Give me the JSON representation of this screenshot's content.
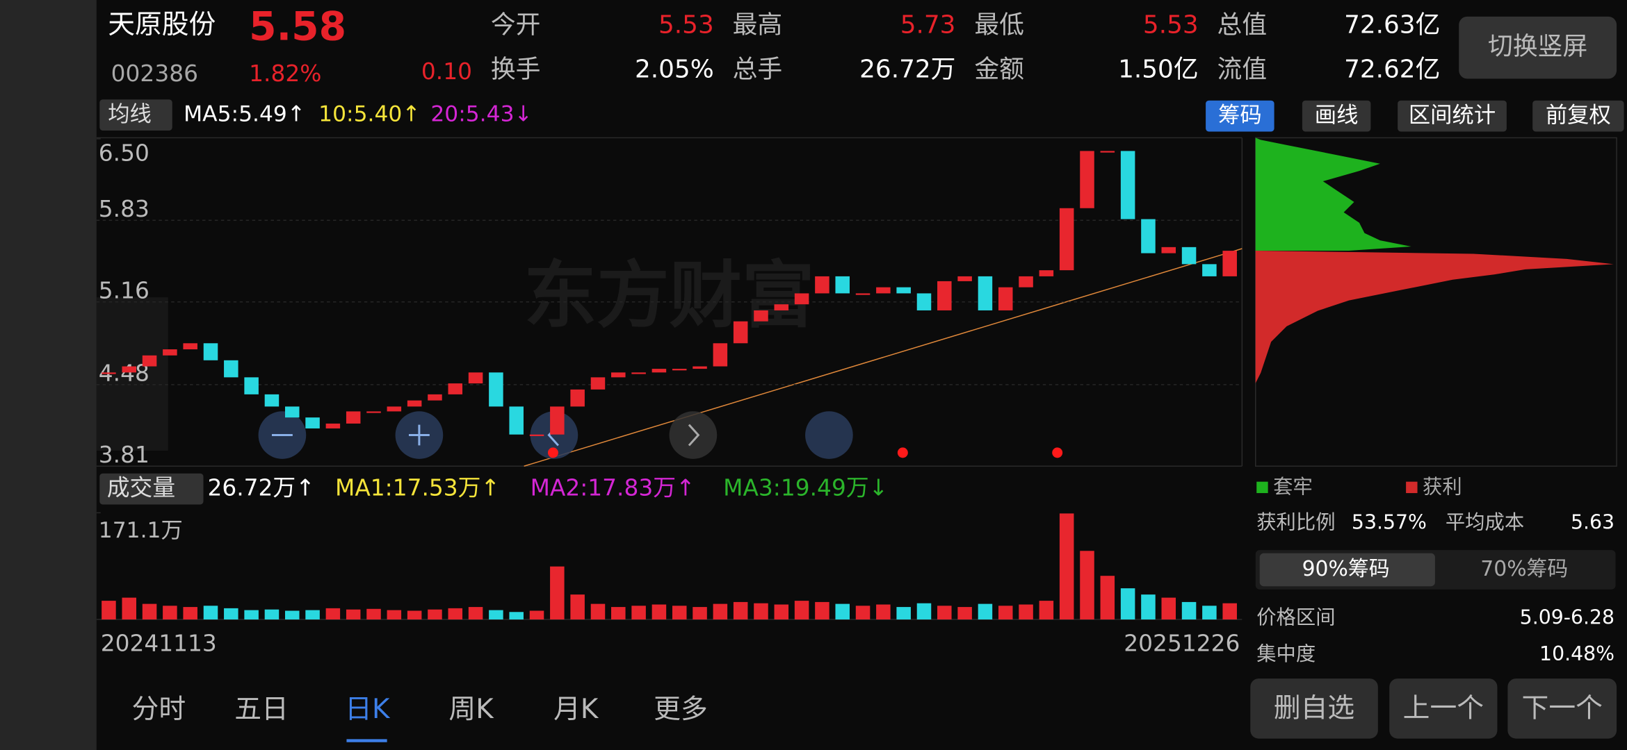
{
  "header": {
    "name": "天原股份",
    "price": "5.58",
    "code": "002386",
    "change_pct": "1.82%",
    "change": "0.10",
    "button": "切换竖屏"
  },
  "quote": [
    {
      "label": "今开",
      "value": "5.53"
    },
    {
      "label": "最高",
      "value": "5.73"
    },
    {
      "label": "最低",
      "value": "5.53"
    },
    {
      "label": "总值",
      "value": "72.63亿"
    },
    {
      "label": "换手",
      "value": "2.05%"
    },
    {
      "label": "总手",
      "value": "26.72万"
    },
    {
      "label": "金额",
      "value": "1.50亿"
    },
    {
      "label": "流值",
      "value": "72.62亿"
    }
  ],
  "toolbar": {
    "indicator": "均线",
    "ma5": "MA5:5.49↑",
    "ma10": "10:5.40↑",
    "ma20": "20:5.43↓",
    "buttons": [
      "筹码",
      "画线",
      "区间统计",
      "前复权"
    ]
  },
  "watermark": "东方财富",
  "chart_data": [
    {
      "type": "candlestick",
      "up_color": "#e8262e",
      "down_color": "#29d8e0",
      "values": [
        4.58,
        4.63,
        4.72,
        4.77,
        4.82,
        4.68,
        4.54,
        4.4,
        4.3,
        4.21,
        4.12,
        4.16,
        4.26,
        4.26,
        4.3,
        4.35,
        4.4,
        4.49,
        4.58,
        4.3,
        4.07,
        4.07,
        4.3,
        4.44,
        4.54,
        4.58,
        4.58,
        4.61,
        4.61,
        4.63,
        4.82,
        5.0,
        5.09,
        5.14,
        5.23,
        5.37,
        5.23,
        5.23,
        5.28,
        5.23,
        5.09,
        5.33,
        5.37,
        5.09,
        5.28,
        5.37,
        5.42,
        5.93,
        6.4,
        6.4,
        5.84,
        5.56,
        5.61,
        5.47,
        5.37,
        5.58
      ],
      "ylim": [
        3.81,
        6.5
      ],
      "yticks": [
        {
          "value": 6.5,
          "label": "6.50"
        },
        5.83,
        5.16,
        4.48,
        3.81
      ],
      "grid": true
    },
    {
      "type": "bar",
      "title": "成交量",
      "legend": [
        "26.72万↑",
        "MA1:17.53万↑",
        "MA2:17.83万↑",
        "MA3:19.49万↓"
      ],
      "categories": [
        "20241113",
        null,
        null,
        null,
        null,
        null,
        null,
        null,
        null,
        null,
        null,
        null,
        null,
        null,
        null,
        null,
        null,
        null,
        null,
        null,
        null,
        null,
        null,
        null,
        null,
        null,
        null,
        null,
        null,
        null,
        null,
        null,
        null,
        null,
        null,
        null,
        null,
        null,
        null,
        null,
        null,
        null,
        null,
        null,
        null,
        null,
        null,
        null,
        null,
        null,
        null,
        null,
        null,
        null,
        null,
        "20251226"
      ],
      "values": [
        30,
        35,
        25,
        22,
        20,
        22,
        18,
        15,
        16,
        14,
        15,
        18,
        16,
        17,
        15,
        14,
        16,
        18,
        20,
        15,
        12,
        14,
        85,
        40,
        25,
        20,
        22,
        24,
        22,
        20,
        25,
        28,
        26,
        24,
        30,
        28,
        25,
        22,
        24,
        20,
        26,
        22,
        20,
        25,
        22,
        24,
        30,
        170,
        110,
        70,
        50,
        40,
        35,
        28,
        22,
        26
      ],
      "ylim": [
        0,
        171.1
      ],
      "yticks": [
        {
          "value": 171.1,
          "label": "171.1万"
        }
      ]
    }
  ],
  "tabs": [
    "分时",
    "五日",
    "日K",
    "周K",
    "月K",
    "更多"
  ],
  "chips": {
    "legend": [
      "套牢",
      "获利"
    ],
    "profit_ratio_label": "获利比例",
    "profit_ratio": "53.57%",
    "avg_cost_label": "平均成本",
    "avg_cost": "5.63",
    "modes": [
      "90%筹码",
      "70%筹码"
    ],
    "range_label": "价格区间",
    "range": "5.09-6.28",
    "concentration_label": "集中度",
    "concentration": "10.48%"
  },
  "actions": [
    "删自选",
    "上一个",
    "下一个"
  ]
}
